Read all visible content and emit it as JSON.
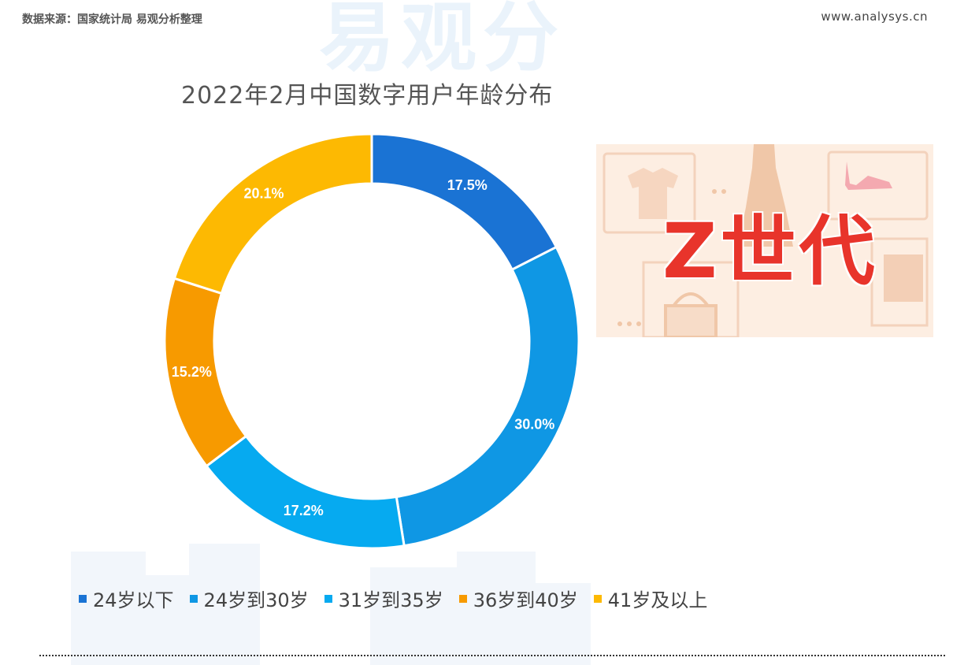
{
  "header": {
    "source": "数据来源：国家统计局 易观分析整理",
    "site": "www.analysys.cn",
    "watermark": "易观分"
  },
  "side_image": {
    "title": "Z世代",
    "icons": [
      "shirt-icon",
      "dress-icon",
      "shoe-icon",
      "handbag-icon",
      "chair-icon"
    ]
  },
  "chart_data": {
    "type": "pie",
    "variant": "donut",
    "title": "2022年2月中国数字用户年龄分布",
    "legend_position": "bottom",
    "categories": [
      "24岁以下",
      "24岁到30岁",
      "31岁到35岁",
      "36岁到40岁",
      "41岁及以上"
    ],
    "values": [
      17.5,
      30.0,
      17.2,
      15.2,
      20.1
    ],
    "value_labels": [
      "17.5%",
      "30.0%",
      "17.2%",
      "15.2%",
      "20.1%"
    ],
    "unit": "%",
    "colors": [
      "#1a73d4",
      "#0f97e4",
      "#06aaf0",
      "#f79a00",
      "#fdb902"
    ]
  }
}
